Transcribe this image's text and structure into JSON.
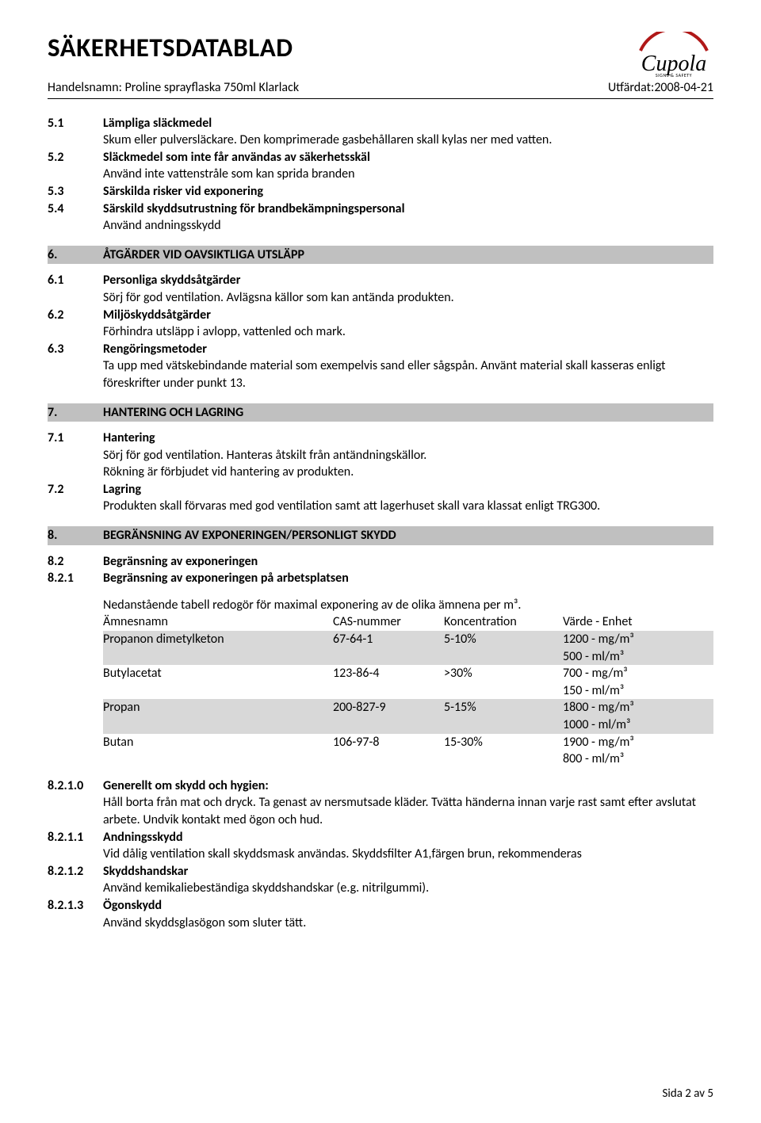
{
  "header": {
    "doc_title": "SÄKERHETSDATABLAD",
    "product_label": "Handelsnamn: Proline sprayflaska 750ml Klarlack",
    "issued_label": "Utfärdat:2008-04-21",
    "brand": "Cupola",
    "brand_sub": "SIGNS & SAFETY"
  },
  "s5": {
    "n1": "5.1",
    "t1": "Lämpliga släckmedel",
    "b1": "Skum eller pulversläckare. Den komprimerade gasbehållaren skall kylas ner med vatten.",
    "n2": "5.2",
    "t2": "Släckmedel som inte får användas av säkerhetsskäl",
    "b2": "Använd inte vattenstråle som kan sprida branden",
    "n3": "5.3",
    "t3": "Särskilda risker vid exponering",
    "n4": "5.4",
    "t4": "Särskild skyddsutrustning för brandbekämpningspersonal",
    "b4": "Använd andningsskydd"
  },
  "s6": {
    "num": "6.",
    "title": "ÅTGÄRDER VID OAVSIKTLIGA UTSLÄPP",
    "n1": "6.1",
    "t1": "Personliga skyddsåtgärder",
    "b1": "Sörj för god ventilation. Avlägsna källor som kan antända produkten.",
    "n2": "6.2",
    "t2": "Miljöskyddsåtgärder",
    "b2": "Förhindra utsläpp i avlopp, vattenled och mark.",
    "n3": "6.3",
    "t3": "Rengöringsmetoder",
    "b3": "Ta upp med vätskebindande material som exempelvis sand eller sågspån. Använt material skall kasseras enligt föreskrifter under punkt 13."
  },
  "s7": {
    "num": "7.",
    "title": "HANTERING OCH LAGRING",
    "n1": "7.1",
    "t1": "Hantering",
    "b1a": "Sörj för god ventilation. Hanteras åtskilt från antändningskällor.",
    "b1b": "Rökning är förbjudet vid hantering av produkten.",
    "n2": "7.2",
    "t2": "Lagring",
    "b2": "Produkten skall förvaras med god ventilation samt att lagerhuset skall vara klassat enligt TRG300."
  },
  "s8": {
    "num": "8.",
    "title": "BEGRÄNSNING AV EXPONERINGEN/PERSONLIGT SKYDD",
    "n2": "8.2",
    "t2": "Begränsning av exponeringen",
    "n21": "8.2.1",
    "t21": "Begränsning av exponeringen på arbetsplatsen",
    "intro": "Nedanstående tabell redogör för maximal exponering av de olika ämnena per m³.",
    "table": {
      "headers": [
        "Ämnesnamn",
        "CAS-nummer",
        "Koncentration",
        "Värde - Enhet"
      ],
      "rows": [
        {
          "shade": true,
          "cells": [
            "Propanon dimetylketon",
            "67-64-1",
            "5-10%",
            "1200 - mg/m³"
          ]
        },
        {
          "shade": true,
          "cells": [
            "",
            "",
            "",
            "500 - ml/m³"
          ]
        },
        {
          "shade": false,
          "cells": [
            "Butylacetat",
            "123-86-4",
            ">30%",
            "700 - mg/m³"
          ]
        },
        {
          "shade": false,
          "cells": [
            "",
            "",
            "",
            "150 - ml/m³"
          ]
        },
        {
          "shade": true,
          "cells": [
            "Propan",
            "200-827-9",
            "5-15%",
            "1800 - mg/m³"
          ]
        },
        {
          "shade": true,
          "cells": [
            "",
            "",
            "",
            "1000 - ml/m³"
          ]
        },
        {
          "shade": false,
          "cells": [
            "Butan",
            "106-97-8",
            "15-30%",
            "1900 - mg/m³"
          ]
        },
        {
          "shade": false,
          "cells": [
            "",
            "",
            "",
            "800 - ml/m³"
          ]
        }
      ]
    },
    "n210": "8.2.1.0",
    "t210": "Generellt om skydd och hygien:",
    "b210": "Håll borta från mat och dryck. Ta genast av nersmutsade kläder. Tvätta händerna innan varje rast samt efter avslutat arbete. Undvik kontakt med ögon och hud.",
    "n211": "8.2.1.1",
    "t211": "Andningsskydd",
    "b211": "Vid dålig ventilation skall skyddsmask användas. Skyddsfilter A1,färgen brun, rekommenderas",
    "n212": "8.2.1.2",
    "t212": "Skyddshandskar",
    "b212": "Använd kemikaliebeständiga skyddshandskar (e.g. nitrilgummi).",
    "n213": "8.2.1.3",
    "t213": "Ögonskydd",
    "b213": "Använd skyddsglasögon som sluter tätt."
  },
  "footer": "Sida 2 av 5"
}
